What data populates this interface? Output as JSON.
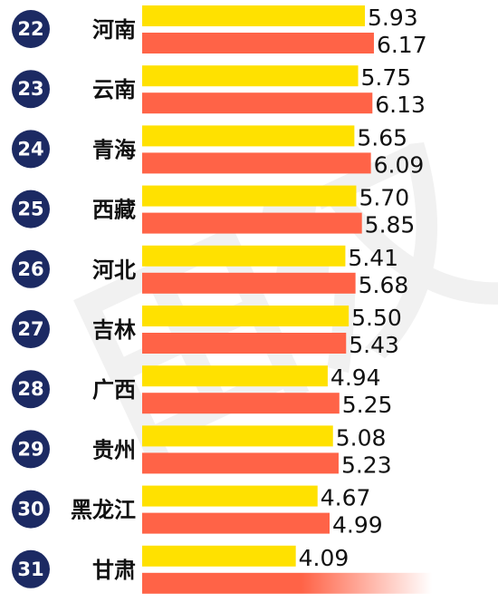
{
  "chart_data": {
    "type": "bar",
    "orientation": "horizontal",
    "categories": [
      "河南",
      "云南",
      "青海",
      "西藏",
      "河北",
      "吉林",
      "广西",
      "贵州",
      "黑龙江",
      "甘肃"
    ],
    "ranks": [
      "22",
      "23",
      "24",
      "25",
      "26",
      "27",
      "28",
      "29",
      "30",
      "31"
    ],
    "series": [
      {
        "color": "#ffe100",
        "values": [
          5.93,
          5.75,
          5.65,
          5.7,
          5.41,
          5.5,
          4.94,
          5.08,
          4.67,
          4.09
        ],
        "labels": [
          "5.93",
          "5.75",
          "5.65",
          "5.70",
          "5.41",
          "5.50",
          "4.94",
          "5.08",
          "4.67",
          "4.09"
        ]
      },
      {
        "color": "#ff6347",
        "values": [
          6.17,
          6.13,
          6.09,
          5.85,
          5.68,
          5.43,
          5.25,
          5.23,
          4.99,
          null
        ],
        "labels": [
          "6.17",
          "6.13",
          "6.09",
          "5.85",
          "5.68",
          "5.43",
          "5.25",
          "5.23",
          "4.99",
          ""
        ]
      }
    ],
    "colors": {
      "rank_circle": "#1c2a63",
      "yellow": "#ffe100",
      "red": "#ff6347"
    },
    "grid": false,
    "legend": "none"
  }
}
